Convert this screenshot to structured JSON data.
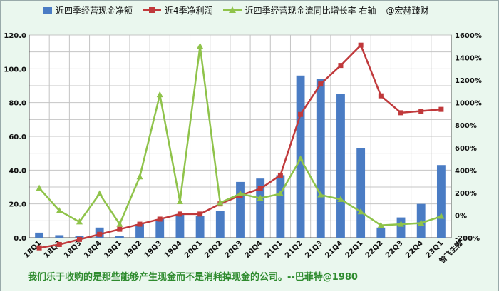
{
  "legend": {
    "bar_label": "近四季经营现金净额",
    "red_label": "近4季净利润",
    "green_label": "近四季经营现金流同比增长率 右轴",
    "author": "@宏赫臻财"
  },
  "footer": {
    "quote": "我们乐于收购的是那些能够产生现金而不是消耗掉现金的公司。--巴菲特@1980",
    "company": "智飞生物"
  },
  "chart_data": {
    "type": "bar",
    "categories": [
      "18Q1",
      "18Q2",
      "18Q3",
      "18Q4",
      "19Q1",
      "19Q2",
      "19Q3",
      "19Q4",
      "20Q1",
      "20Q2",
      "20Q3",
      "20Q4",
      "21Q1",
      "21Q2",
      "21Q3",
      "21Q4",
      "22Q1",
      "22Q2",
      "22Q3",
      "22Q4",
      "23Q1"
    ],
    "series": [
      {
        "name": "近四季经营现金净额",
        "type": "bar",
        "axis": "left",
        "color": "#4a7cc4",
        "values": [
          3,
          1.5,
          1,
          6,
          1,
          8,
          11,
          14,
          13,
          16,
          33,
          35,
          37,
          96,
          94,
          85,
          53,
          6,
          12,
          20,
          43
        ]
      },
      {
        "name": "近4季净利润",
        "type": "line",
        "axis": "left",
        "color": "#c0393b",
        "marker": "square",
        "values": [
          -6,
          -4,
          -1,
          2,
          5,
          8,
          11,
          14,
          14,
          20,
          25,
          29,
          37,
          73,
          91,
          102,
          114,
          84,
          74,
          75,
          76
        ]
      },
      {
        "name": "近四季经营现金流同比增长率 右轴",
        "type": "line",
        "axis": "right",
        "color": "#8fc34a",
        "marker": "triangle",
        "values": [
          240,
          40,
          -60,
          190,
          -80,
          340,
          1070,
          120,
          1500,
          110,
          190,
          150,
          190,
          500,
          180,
          140,
          30,
          -90,
          -80,
          -70,
          -10
        ]
      }
    ],
    "y_left": {
      "min": 0,
      "max": 120,
      "ticks": [
        "0.0",
        "20.0",
        "40.0",
        "60.0",
        "80.0",
        "100.0",
        "120.0"
      ]
    },
    "y_right": {
      "min": -200,
      "max": 1600,
      "ticks": [
        "-200%",
        "0%",
        "200%",
        "400%",
        "600%",
        "800%",
        "1000%",
        "1200%",
        "1400%",
        "1600%"
      ]
    },
    "grid": true,
    "legend_position": "top"
  }
}
